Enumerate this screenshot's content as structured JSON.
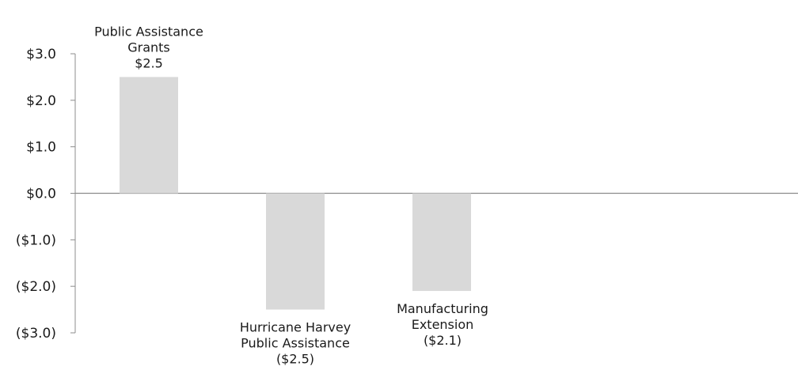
{
  "chart_data": {
    "type": "bar",
    "title": "",
    "xlabel": "",
    "ylabel": "",
    "ylim": [
      -3.0,
      3.0
    ],
    "yticks": [
      3.0,
      2.0,
      1.0,
      0.0,
      -1.0,
      -2.0,
      -3.0
    ],
    "ytick_labels": [
      "$3.0",
      "$2.0",
      "$1.0",
      "$0.0",
      "($1.0)",
      "($2.0)",
      "($3.0)"
    ],
    "grid": false,
    "legend": "none",
    "bar_color": "#d9d9d9",
    "axis_color": "#8c8c8c",
    "categories": [
      "Public Assistance Grants",
      "Hurricane Harvey Public Assistance",
      "Manufacturing Extension"
    ],
    "values": [
      2.5,
      -2.5,
      -2.1
    ],
    "data_labels": [
      [
        "Public Assistance",
        "Grants",
        "$2.5"
      ],
      [
        "Hurricane Harvey",
        "Public Assistance",
        "($2.5)"
      ],
      [
        "Manufacturing",
        "Extension",
        "($2.1)"
      ]
    ]
  }
}
